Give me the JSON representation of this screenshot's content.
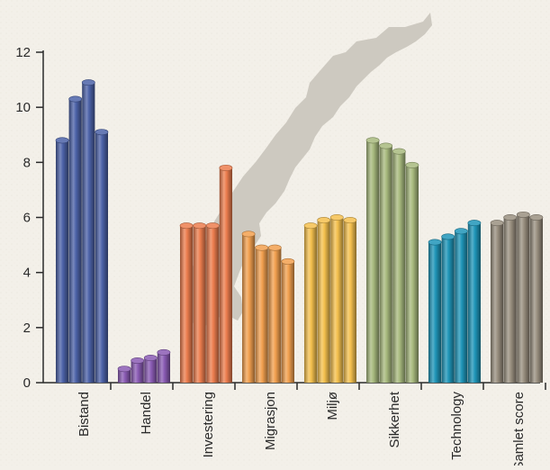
{
  "chart_data": {
    "type": "bar",
    "categories": [
      "Bistand",
      "Handel",
      "Investering",
      "Migrasjon",
      "Miljø",
      "Sikkerhet",
      "Technology",
      "Samlet score"
    ],
    "series": [
      {
        "values": [
          8.8,
          0.5,
          5.7,
          5.4,
          5.7,
          8.8,
          5.1,
          5.8
        ]
      },
      {
        "values": [
          10.3,
          0.8,
          5.7,
          4.9,
          5.9,
          8.6,
          5.3,
          6.0
        ]
      },
      {
        "values": [
          10.9,
          0.9,
          5.7,
          4.9,
          6.0,
          8.4,
          5.5,
          6.1
        ]
      },
      {
        "values": [
          9.1,
          1.1,
          7.8,
          4.4,
          5.9,
          7.9,
          5.8,
          6.0
        ]
      }
    ],
    "colors": [
      "#4c62a8",
      "#8a5bb4",
      "#ec7d4e",
      "#f2a04f",
      "#f4c04e",
      "#a8ba7e",
      "#1f95b8",
      "#9a9080"
    ],
    "ylim": [
      0,
      12
    ],
    "yticks": [
      "0",
      "2",
      "4",
      "6",
      "8",
      "10",
      "12"
    ],
    "title": "",
    "xlabel": "",
    "ylabel": "",
    "grid": false,
    "background": "map of Norway"
  }
}
